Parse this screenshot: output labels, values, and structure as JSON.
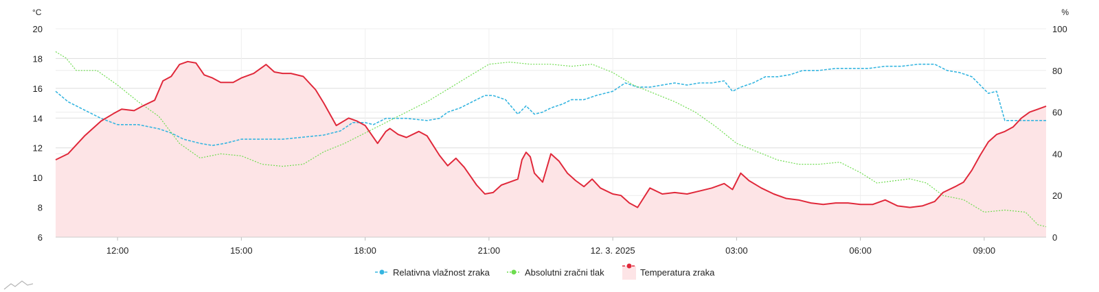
{
  "chart_data": {
    "type": "line",
    "title": "",
    "left_axis": {
      "unit": "°C",
      "ylim": [
        6,
        20
      ],
      "ticks": [
        "20",
        "18",
        "16",
        "14",
        "12",
        "10",
        "8",
        "6"
      ]
    },
    "right_axis": {
      "unit": "%",
      "ylim": [
        0,
        100
      ],
      "ticks": [
        "100",
        "80",
        "60",
        "40",
        "20",
        "0"
      ]
    },
    "x_range": [
      10.5,
      34.5
    ],
    "x_ticks": [
      {
        "pos": 12,
        "label": "12:00"
      },
      {
        "pos": 15,
        "label": "15:00"
      },
      {
        "pos": 18,
        "label": "18:00"
      },
      {
        "pos": 21,
        "label": "21:00"
      },
      {
        "pos": 24,
        "label": "12. 3. 2025"
      },
      {
        "pos": 27,
        "label": "03:00"
      },
      {
        "pos": 30,
        "label": "06:00"
      },
      {
        "pos": 33,
        "label": "09:00"
      }
    ],
    "grid": true,
    "legend_position": "bottom",
    "series": [
      {
        "name": "Relativna vlažnost zraka",
        "axis": "right",
        "color": "#35b5e0",
        "style": "dashed",
        "x": [
          10.5,
          10.8,
          11.2,
          11.6,
          12.0,
          12.5,
          13.0,
          13.3,
          13.6,
          14.0,
          14.3,
          14.6,
          15.0,
          15.5,
          16.0,
          16.5,
          17.0,
          17.4,
          17.7,
          18.0,
          18.2,
          18.5,
          19.0,
          19.5,
          19.8,
          20.0,
          20.3,
          20.6,
          20.9,
          21.1,
          21.4,
          21.7,
          21.9,
          22.1,
          22.3,
          22.5,
          22.8,
          23.0,
          23.3,
          23.6,
          24.0,
          24.3,
          24.6,
          24.9,
          25.2,
          25.5,
          25.8,
          26.1,
          26.4,
          26.7,
          26.9,
          27.1,
          27.4,
          27.7,
          28.0,
          28.3,
          28.6,
          29.0,
          29.4,
          29.8,
          30.2,
          30.6,
          31.0,
          31.4,
          31.8,
          32.1,
          32.4,
          32.7,
          32.9,
          33.1,
          33.3,
          33.5,
          33.7,
          34.0,
          34.3,
          34.5
        ],
        "values": [
          70,
          65,
          61,
          57,
          54,
          54,
          52,
          50,
          47,
          45,
          44,
          45,
          47,
          47,
          47,
          48,
          49,
          51,
          55,
          55,
          54,
          57,
          57,
          56,
          57,
          60,
          62,
          65,
          68,
          68,
          66,
          59,
          63,
          59,
          60,
          62,
          64,
          66,
          66,
          68,
          70,
          74,
          72,
          72,
          73,
          74,
          73,
          74,
          74,
          75,
          70,
          72,
          74,
          77,
          77,
          78,
          80,
          80,
          81,
          81,
          81,
          82,
          82,
          83,
          83,
          80,
          79,
          77,
          73,
          69,
          70,
          56,
          56,
          56,
          56,
          56
        ]
      },
      {
        "name": "Absolutni zračni tlak",
        "axis": "right",
        "color": "#6ddc4e",
        "style": "dotted",
        "x": [
          10.5,
          10.75,
          11.0,
          11.5,
          12.0,
          12.5,
          13.0,
          13.5,
          14.0,
          14.5,
          15.0,
          15.5,
          16.0,
          16.5,
          17.0,
          17.5,
          18.0,
          18.5,
          19.0,
          19.5,
          20.0,
          20.5,
          21.0,
          21.5,
          22.0,
          22.5,
          23.0,
          23.5,
          24.0,
          24.5,
          25.0,
          25.5,
          26.0,
          26.5,
          27.0,
          27.5,
          28.0,
          28.5,
          29.0,
          29.5,
          30.0,
          30.4,
          30.8,
          31.2,
          31.6,
          32.0,
          32.5,
          33.0,
          33.5,
          34.0,
          34.3,
          34.5
        ],
        "values": [
          89,
          86,
          80,
          80,
          73,
          65,
          58,
          45,
          38,
          40,
          39,
          35,
          34,
          35,
          41,
          45,
          50,
          55,
          60,
          65,
          71,
          77,
          83,
          84,
          83,
          83,
          82,
          83,
          79,
          73,
          69,
          65,
          60,
          53,
          45,
          41,
          37,
          35,
          35,
          36,
          31,
          26,
          27,
          28,
          26,
          20,
          18,
          12,
          13,
          12,
          6,
          5
        ]
      },
      {
        "name": "Temperatura zraka",
        "axis": "left",
        "color": "#e0283a",
        "fill": "#fde4e6",
        "style": "solid",
        "x": [
          10.5,
          10.8,
          11.2,
          11.6,
          11.9,
          12.1,
          12.4,
          12.6,
          12.9,
          13.1,
          13.3,
          13.5,
          13.7,
          13.9,
          14.1,
          14.3,
          14.5,
          14.8,
          15.0,
          15.3,
          15.6,
          15.8,
          16.0,
          16.2,
          16.5,
          16.8,
          17.0,
          17.3,
          17.6,
          17.8,
          18.0,
          18.3,
          18.5,
          18.6,
          18.8,
          19.0,
          19.3,
          19.5,
          19.8,
          20.0,
          20.2,
          20.4,
          20.7,
          20.9,
          21.1,
          21.3,
          21.5,
          21.7,
          21.8,
          21.9,
          22.0,
          22.1,
          22.3,
          22.5,
          22.7,
          22.9,
          23.1,
          23.3,
          23.5,
          23.7,
          24.0,
          24.2,
          24.4,
          24.6,
          24.9,
          25.2,
          25.5,
          25.8,
          26.1,
          26.4,
          26.7,
          26.9,
          27.1,
          27.3,
          27.6,
          27.9,
          28.2,
          28.5,
          28.8,
          29.1,
          29.4,
          29.7,
          30.0,
          30.3,
          30.6,
          30.9,
          31.2,
          31.5,
          31.8,
          32.0,
          32.3,
          32.5,
          32.7,
          32.9,
          33.1,
          33.3,
          33.5,
          33.7,
          33.9,
          34.1,
          34.3,
          34.5
        ],
        "values": [
          11.2,
          11.6,
          12.8,
          13.8,
          14.3,
          14.6,
          14.5,
          14.8,
          15.2,
          16.5,
          16.8,
          17.6,
          17.8,
          17.7,
          16.9,
          16.7,
          16.4,
          16.4,
          16.7,
          17.0,
          17.6,
          17.1,
          17.0,
          17.0,
          16.8,
          15.9,
          15.0,
          13.5,
          14.0,
          13.8,
          13.5,
          12.3,
          13.1,
          13.3,
          12.9,
          12.7,
          13.1,
          12.8,
          11.5,
          10.8,
          11.3,
          10.7,
          9.5,
          8.9,
          9.0,
          9.5,
          9.7,
          9.9,
          11.2,
          11.7,
          11.4,
          10.3,
          9.7,
          11.6,
          11.1,
          10.3,
          9.8,
          9.4,
          9.9,
          9.3,
          8.9,
          8.8,
          8.3,
          8.0,
          9.3,
          8.9,
          9.0,
          8.9,
          9.1,
          9.3,
          9.6,
          9.2,
          10.3,
          9.8,
          9.3,
          8.9,
          8.6,
          8.5,
          8.3,
          8.2,
          8.3,
          8.3,
          8.2,
          8.2,
          8.5,
          8.1,
          8.0,
          8.1,
          8.4,
          9.0,
          9.4,
          9.7,
          10.5,
          11.5,
          12.4,
          12.9,
          13.1,
          13.4,
          14.0,
          14.4,
          14.6,
          14.8
        ]
      }
    ]
  }
}
